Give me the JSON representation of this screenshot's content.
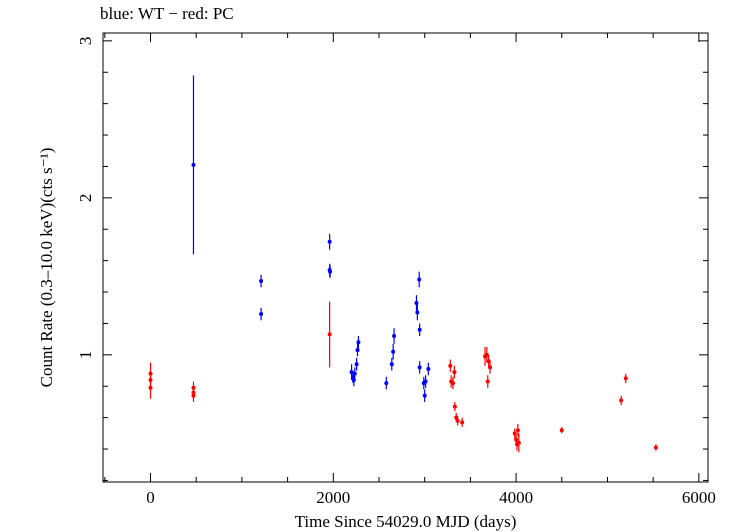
{
  "chart_data": {
    "type": "scatter",
    "title": "blue: WT − red: PC",
    "xlabel": "Time Since 54029.0 MJD (days)",
    "ylabel": "Count Rate (0.3–10.0 keV)(cts s⁻¹)",
    "xlim": [
      -520,
      6100
    ],
    "ylim": [
      0.19,
      3.05
    ],
    "x_ticks": [
      0,
      2000,
      4000,
      6000
    ],
    "x_tick_labels": [
      "0",
      "2000",
      "4000",
      "6000"
    ],
    "y_ticks": [
      1,
      2,
      3
    ],
    "y_tick_labels": [
      "1",
      "2",
      "3"
    ],
    "grid": false,
    "legend": "none",
    "series": [
      {
        "color": "#0000ff",
        "points": [
          {
            "x": 470,
            "y": 2.21,
            "err": 0.57
          },
          {
            "x": 1210,
            "y": 1.47,
            "err": 0.04
          },
          {
            "x": 1210,
            "y": 1.26,
            "err": 0.04
          },
          {
            "x": 1960,
            "y": 1.72,
            "err": 0.05
          },
          {
            "x": 1960,
            "y": 1.54,
            "err": 0.04
          },
          {
            "x": 1965,
            "y": 1.53,
            "err": 0.04
          },
          {
            "x": 2200,
            "y": 0.89,
            "err": 0.05
          },
          {
            "x": 2215,
            "y": 0.86,
            "err": 0.04
          },
          {
            "x": 2225,
            "y": 0.84,
            "err": 0.04
          },
          {
            "x": 2235,
            "y": 0.88,
            "err": 0.04
          },
          {
            "x": 2255,
            "y": 0.94,
            "err": 0.04
          },
          {
            "x": 2265,
            "y": 1.03,
            "err": 0.04
          },
          {
            "x": 2275,
            "y": 1.08,
            "err": 0.04
          },
          {
            "x": 2580,
            "y": 0.82,
            "err": 0.04
          },
          {
            "x": 2640,
            "y": 0.94,
            "err": 0.04
          },
          {
            "x": 2655,
            "y": 1.02,
            "err": 0.05
          },
          {
            "x": 2665,
            "y": 1.12,
            "err": 0.05
          },
          {
            "x": 2910,
            "y": 1.33,
            "err": 0.05
          },
          {
            "x": 2920,
            "y": 1.27,
            "err": 0.05
          },
          {
            "x": 2940,
            "y": 1.48,
            "err": 0.05
          },
          {
            "x": 2945,
            "y": 1.16,
            "err": 0.04
          },
          {
            "x": 2945,
            "y": 0.92,
            "err": 0.04
          },
          {
            "x": 2990,
            "y": 0.82,
            "err": 0.04
          },
          {
            "x": 3000,
            "y": 0.74,
            "err": 0.04
          },
          {
            "x": 3010,
            "y": 0.83,
            "err": 0.04
          },
          {
            "x": 3040,
            "y": 0.91,
            "err": 0.04
          }
        ]
      },
      {
        "color": "#ff0000",
        "points": [
          {
            "x": 0,
            "y": 0.88,
            "err": 0.07
          },
          {
            "x": 0,
            "y": 0.84,
            "err": 0.06
          },
          {
            "x": 0,
            "y": 0.79,
            "err": 0.07
          },
          {
            "x": 470,
            "y": 0.79,
            "err": 0.04
          },
          {
            "x": 470,
            "y": 0.76,
            "err": 0.04
          },
          {
            "x": 470,
            "y": 0.74,
            "err": 0.04
          },
          {
            "x": 1960,
            "y": 1.13,
            "err": 0.21
          },
          {
            "x": 3280,
            "y": 0.93,
            "err": 0.04
          },
          {
            "x": 3290,
            "y": 0.83,
            "err": 0.04
          },
          {
            "x": 3310,
            "y": 0.82,
            "err": 0.04
          },
          {
            "x": 3325,
            "y": 0.89,
            "err": 0.04
          },
          {
            "x": 3330,
            "y": 0.67,
            "err": 0.03
          },
          {
            "x": 3345,
            "y": 0.6,
            "err": 0.03
          },
          {
            "x": 3360,
            "y": 0.58,
            "err": 0.03
          },
          {
            "x": 3410,
            "y": 0.57,
            "err": 0.03
          },
          {
            "x": 3660,
            "y": 0.99,
            "err": 0.06
          },
          {
            "x": 3680,
            "y": 1.0,
            "err": 0.05
          },
          {
            "x": 3690,
            "y": 0.83,
            "err": 0.04
          },
          {
            "x": 3700,
            "y": 0.96,
            "err": 0.04
          },
          {
            "x": 3715,
            "y": 0.92,
            "err": 0.04
          },
          {
            "x": 3985,
            "y": 0.5,
            "err": 0.03
          },
          {
            "x": 4000,
            "y": 0.46,
            "err": 0.04
          },
          {
            "x": 4010,
            "y": 0.43,
            "err": 0.04
          },
          {
            "x": 4020,
            "y": 0.52,
            "err": 0.04
          },
          {
            "x": 4030,
            "y": 0.44,
            "err": 0.06
          },
          {
            "x": 4500,
            "y": 0.52,
            "err": 0.02
          },
          {
            "x": 5150,
            "y": 0.71,
            "err": 0.03
          },
          {
            "x": 5200,
            "y": 0.85,
            "err": 0.03
          },
          {
            "x": 5530,
            "y": 0.41,
            "err": 0.02
          }
        ]
      }
    ]
  }
}
